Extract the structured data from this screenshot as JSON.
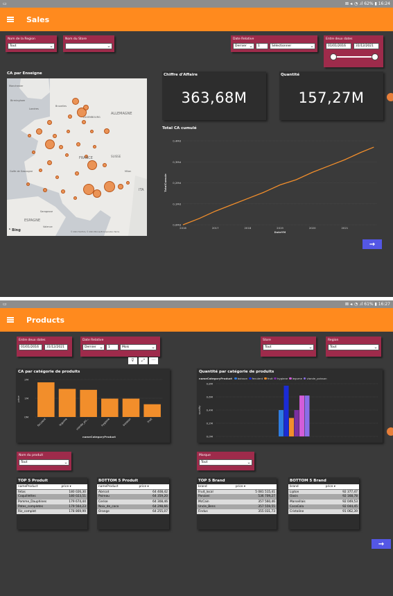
{
  "sales": {
    "status": {
      "left": "▭",
      "right": "⊠ ◂ᵢ ◔ .ıl 62% ▮ 16:24"
    },
    "title": "Sales",
    "region": {
      "label": "Nom de la Region",
      "value": "Tout"
    },
    "store": {
      "label": "Nom du Store",
      "value": ""
    },
    "date_relative": {
      "label": "Date Relative",
      "mode": "Dernier",
      "number": "1",
      "unit": "Sélectionner"
    },
    "between": {
      "label": "Entre deux dates",
      "start": "01/01/2016",
      "end": "31/12/2021",
      "range": [
        0,
        1
      ]
    },
    "map": {
      "title": "CA par Enseigne",
      "labels": [
        "Manchester",
        "Birmingham",
        "Londres",
        "Bruxelles",
        "LUXEMBOURG",
        "ALLEMAGNE",
        "FRANCE",
        "SUISSE",
        "Milan",
        "Golfe de Gascogne",
        "ITA",
        "Saragosse",
        "ESPAGNE",
        "Valence"
      ],
      "brand": "Bing",
      "attribution": "© 2021 TomTom, © 2021 Microsoft Corporation  Terms"
    },
    "ca": {
      "title": "Chiffre d'Affaire",
      "value": "363,68M"
    },
    "qty": {
      "title": "Quantité",
      "value": "157,27M"
    },
    "cumul": {
      "title": "Total CA cumulé",
      "xlabel": "DateYM",
      "ylabel": "TotalCumule",
      "yticks": [
        "0,0Md",
        "0,1Md",
        "0,2Md",
        "0,3Md",
        "0,4Md"
      ],
      "xticks": [
        "2016",
        "2017",
        "2018",
        "2019",
        "2020",
        "2021"
      ]
    },
    "next": "→"
  },
  "products": {
    "status": {
      "left": "▭",
      "right": "⊠ ◂ᵢ ◔ .ıl 61% ▮ 16:27"
    },
    "title": "Products",
    "between": {
      "label": "Entre deux dates",
      "start": "01/01/2016",
      "end": "31/12/2021"
    },
    "date_relative": {
      "label": "Date Relative",
      "mode": "Dernier",
      "number": "1",
      "unit": "Mois"
    },
    "store": {
      "label": "Store",
      "value": "Tout"
    },
    "region": {
      "label": "Region",
      "value": "Tout"
    },
    "nom_produit": {
      "label": "Nom du produit",
      "value": "Tout"
    },
    "marque": {
      "label": "Marque",
      "value": "Tout"
    },
    "toolbar": [
      "⊽",
      "⤢",
      "···"
    ],
    "top_produit": {
      "title": "TOP 5 Produit",
      "headers": [
        "nameProduct",
        "price"
      ],
      "rows": [
        [
          "fetas",
          "180 026,30"
        ],
        [
          "Coquillettes",
          "180 023,51"
        ],
        [
          "Pomme_Dauphines",
          "179 674,44"
        ],
        [
          "Pates_completes",
          "179 564,23"
        ],
        [
          "Riz_complet",
          "178 869,99"
        ]
      ]
    },
    "bottom_produit": {
      "title": "BOTTOM 5 Produit",
      "headers": [
        "nameProduct",
        "price"
      ],
      "rows": [
        [
          "Abricot",
          "64 408,42"
        ],
        [
          "Poireau",
          "64 359,20"
        ],
        [
          "Cerise",
          "64 308,46"
        ],
        [
          "Noix_de_coco",
          "64 298,66"
        ],
        [
          "Orange",
          "64 255,07"
        ]
      ]
    },
    "top_brand": {
      "title": "TOP 5 Brand",
      "headers": [
        "brand",
        "price"
      ],
      "rows": [
        [
          "Fruit_local",
          "5 081 515,41"
        ],
        [
          "Panzani",
          "536 709,27"
        ],
        [
          "McCain",
          "357 560,46"
        ],
        [
          "Uncle_Bens",
          "357 559,55"
        ],
        [
          "Findus",
          "355 031,73"
        ]
      ]
    },
    "bottom_brand": {
      "title": "BOTTOM 5 Brand",
      "headers": [
        "brand",
        "price"
      ],
      "rows": [
        [
          "Lipton",
          "92 377,47"
        ],
        [
          "Oasis",
          "92 168,78"
        ],
        [
          "Marseillais",
          "92 049,53"
        ],
        [
          "CocaCola",
          "92 044,45"
        ],
        [
          "Cristaline",
          "91 062,39"
        ]
      ]
    },
    "next": "→"
  },
  "chart_data": [
    {
      "type": "line",
      "title": "Total CA cumulé",
      "xlabel": "DateYM",
      "ylabel": "TotalCumule",
      "ylim": [
        0,
        0.4
      ],
      "unit": "Md",
      "x": [
        2016,
        2016.5,
        2017,
        2017.5,
        2018,
        2018.5,
        2019,
        2019.5,
        2020,
        2020.5,
        2021,
        2021.5,
        2021.9
      ],
      "y": [
        0,
        0.03,
        0.065,
        0.095,
        0.125,
        0.155,
        0.19,
        0.215,
        0.25,
        0.28,
        0.31,
        0.345,
        0.37
      ],
      "color": "#f28e2b"
    },
    {
      "type": "bar",
      "title": "CA par catégorie de produits",
      "xlabel": "nameCategoryProduct",
      "ylabel": "price",
      "ylim": [
        0,
        2
      ],
      "unit": "M",
      "yticks": [
        "0M",
        "1M",
        "2M"
      ],
      "categories": [
        "feculent",
        "legume",
        "viande_po...",
        "hygiene",
        "boisson",
        "fruit"
      ],
      "values": [
        1.85,
        1.5,
        1.45,
        0.98,
        0.98,
        0.68
      ],
      "color": "#f28e2b"
    },
    {
      "type": "bar",
      "title": "Quantité par catégorie de produits",
      "xlabel": "",
      "ylabel": "quality",
      "ylim": [
        0,
        0.8
      ],
      "unit": "M",
      "yticks": [
        "0,0M",
        "0,2M",
        "0,4M",
        "0,6M",
        "0,8M"
      ],
      "legend_title": "nameCategoryProduct",
      "series": [
        {
          "name": "boisson",
          "value": 0.4,
          "color": "#2f7de1"
        },
        {
          "name": "feculent",
          "value": 0.77,
          "color": "#1a2bd6"
        },
        {
          "name": "fruit",
          "value": 0.28,
          "color": "#f28e2b"
        },
        {
          "name": "hygiene",
          "value": 0.4,
          "color": "#7a2fa0"
        },
        {
          "name": "legume",
          "value": 0.62,
          "color": "#d35dd9"
        },
        {
          "name": "viande_poisson",
          "value": 0.62,
          "color": "#8a6ee8"
        }
      ]
    }
  ],
  "colors": {
    "accent": "#ff8a1e",
    "slicer": "#9e2b4b",
    "canvas": "#3a3a3a",
    "panel": "#2d2d2d",
    "nav": "#5457e5"
  }
}
